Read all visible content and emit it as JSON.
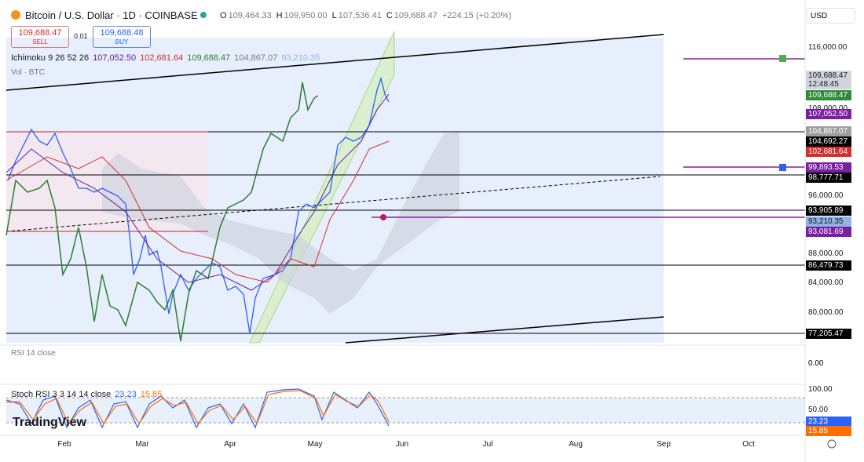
{
  "header": {
    "symbol": "Bitcoin / U.S. Dollar · 1D · COINBASE",
    "ohlc": [
      {
        "key": "O",
        "value": "109,464.33"
      },
      {
        "key": "H",
        "value": "109,950.00"
      },
      {
        "key": "L",
        "value": "107,536.41"
      },
      {
        "key": "C",
        "value": "109,688.47"
      }
    ],
    "change": "+224.15 (+0.20%)"
  },
  "trade": {
    "sell_price": "109,688.47",
    "sell": "SELL",
    "spread": "0.01",
    "buy_price": "109,688.48",
    "buy": "BUY"
  },
  "currency": "USD",
  "indicators": {
    "ichimoku": {
      "name": "Ichimoku 9 26 52 26",
      "values": [
        "107,052.50",
        "102,681.64",
        "109,688.47",
        "104,867.07",
        "93,210.35"
      ]
    },
    "volume": "Vol · BTC",
    "rsi": "RSI 14 close",
    "stoch": {
      "name": "Stoch RSI 3 3 14 14 close",
      "values": [
        "23.23",
        "15.85"
      ]
    }
  },
  "price_axis": [
    "116,000.00",
    "109,688.47",
    "12:48:45",
    "109,688.47",
    "108,000.00",
    "107,052.50",
    "104,867.07",
    "104,692.27",
    "102,681.64",
    "99,893.53",
    "98,777.71",
    "96,000.00",
    "93,905.89",
    "93,210.35",
    "93,081.69",
    "88,000.00",
    "86,479.73",
    "84,000.00",
    "80,000.00",
    "77,205.47"
  ],
  "rsi_axis": [
    "0.00"
  ],
  "stoch_axis": [
    "100.00",
    "50.00",
    "23.23",
    "15.85"
  ],
  "time_axis": [
    "Feb",
    "Mar",
    "Apr",
    "May",
    "Jun",
    "Jul",
    "Aug",
    "Sep",
    "Oct"
  ],
  "logo": "TradingView"
}
